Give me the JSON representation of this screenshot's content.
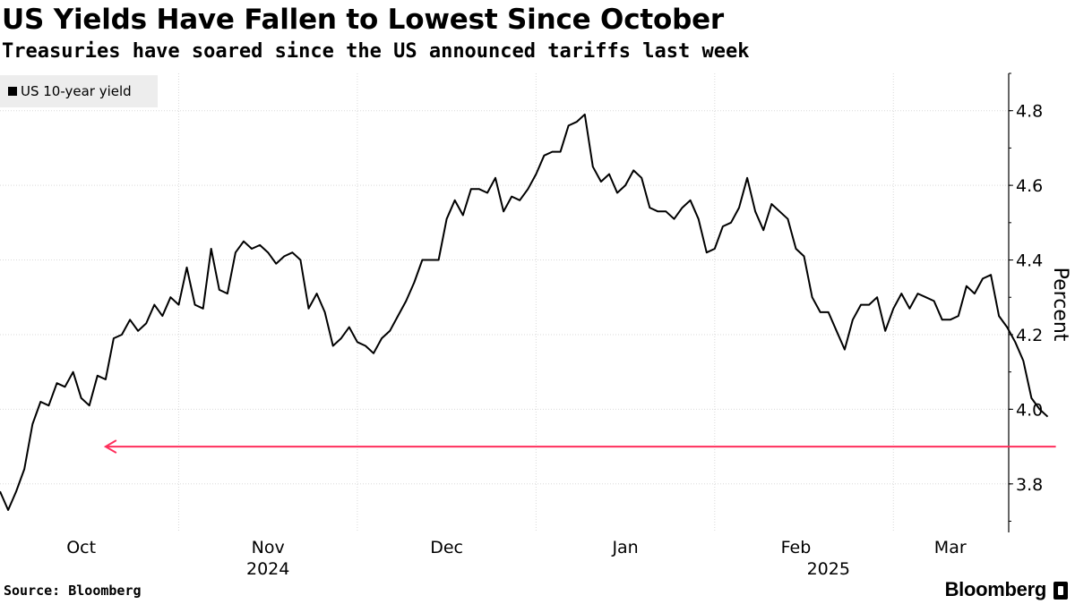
{
  "chart_data": {
    "type": "line",
    "title": "US Yields Have Fallen to Lowest Since October",
    "subtitle": "Treasuries have soared since the US announced tariffs last week",
    "legend": {
      "label": "US 10-year yield",
      "placement": "top-left"
    },
    "ylabel": "Percent",
    "ylim": [
      3.67,
      4.9
    ],
    "yticks": [
      3.8,
      4.0,
      4.2,
      4.4,
      4.6,
      4.8
    ],
    "ytick_labels": [
      "3.8",
      "4.0",
      "4.2",
      "4.4",
      "4.6",
      "4.8"
    ],
    "x_index_range": [
      0,
      121
    ],
    "months": [
      {
        "label": "Oct",
        "index": 10
      },
      {
        "label": "Nov",
        "index": 33
      },
      {
        "label": "Dec",
        "index": 55
      },
      {
        "label": "Jan",
        "index": 77
      },
      {
        "label": "Feb",
        "index": 98
      },
      {
        "label": "Mar",
        "index": 117
      }
    ],
    "year_labels": [
      {
        "label": "2024",
        "index": 33
      },
      {
        "label": "2025",
        "index": 102
      }
    ],
    "gridlines_x_index": [
      0,
      22,
      44,
      66,
      88,
      110,
      132
    ],
    "series": [
      {
        "name": "US 10-year yield",
        "color": "#000000",
        "values": [
          3.78,
          3.73,
          3.78,
          3.84,
          3.96,
          4.02,
          4.01,
          4.07,
          4.06,
          4.1,
          4.03,
          4.01,
          4.09,
          4.08,
          4.19,
          4.2,
          4.24,
          4.21,
          4.23,
          4.28,
          4.25,
          4.3,
          4.28,
          4.38,
          4.28,
          4.27,
          4.43,
          4.32,
          4.31,
          4.42,
          4.45,
          4.43,
          4.44,
          4.42,
          4.39,
          4.41,
          4.42,
          4.4,
          4.27,
          4.31,
          4.26,
          4.17,
          4.19,
          4.22,
          4.18,
          4.17,
          4.15,
          4.19,
          4.21,
          4.25,
          4.29,
          4.34,
          4.4,
          4.4,
          4.4,
          4.51,
          4.56,
          4.52,
          4.59,
          4.59,
          4.58,
          4.62,
          4.53,
          4.57,
          4.56,
          4.59,
          4.63,
          4.68,
          4.69,
          4.69,
          4.76,
          4.77,
          4.79,
          4.65,
          4.61,
          4.63,
          4.58,
          4.6,
          4.64,
          4.62,
          4.54,
          4.53,
          4.53,
          4.51,
          4.54,
          4.56,
          4.51,
          4.42,
          4.43,
          4.49,
          4.5,
          4.54,
          4.62,
          4.53,
          4.48,
          4.55,
          4.53,
          4.51,
          4.43,
          4.41,
          4.3,
          4.26,
          4.26,
          4.21,
          4.16,
          4.24,
          4.28,
          4.28,
          4.3,
          4.21,
          4.27,
          4.31,
          4.27,
          4.31,
          4.3,
          4.29,
          4.24,
          4.24,
          4.25,
          4.33,
          4.31,
          4.35,
          4.36,
          4.25,
          4.22,
          4.18,
          4.13,
          4.03,
          4.0,
          3.98
        ]
      }
    ],
    "annotations": [
      {
        "type": "arrow",
        "y": 3.9,
        "from_index": 130,
        "to_index": 13,
        "color": "#ff2e5b"
      }
    ]
  },
  "footer": {
    "source": "Source: Bloomberg",
    "brand": "Bloomberg"
  },
  "colors": {
    "line": "#000000",
    "grid": "#d9d9d9",
    "annotation": "#ff2e5b",
    "legend_bg": "#ededed"
  }
}
